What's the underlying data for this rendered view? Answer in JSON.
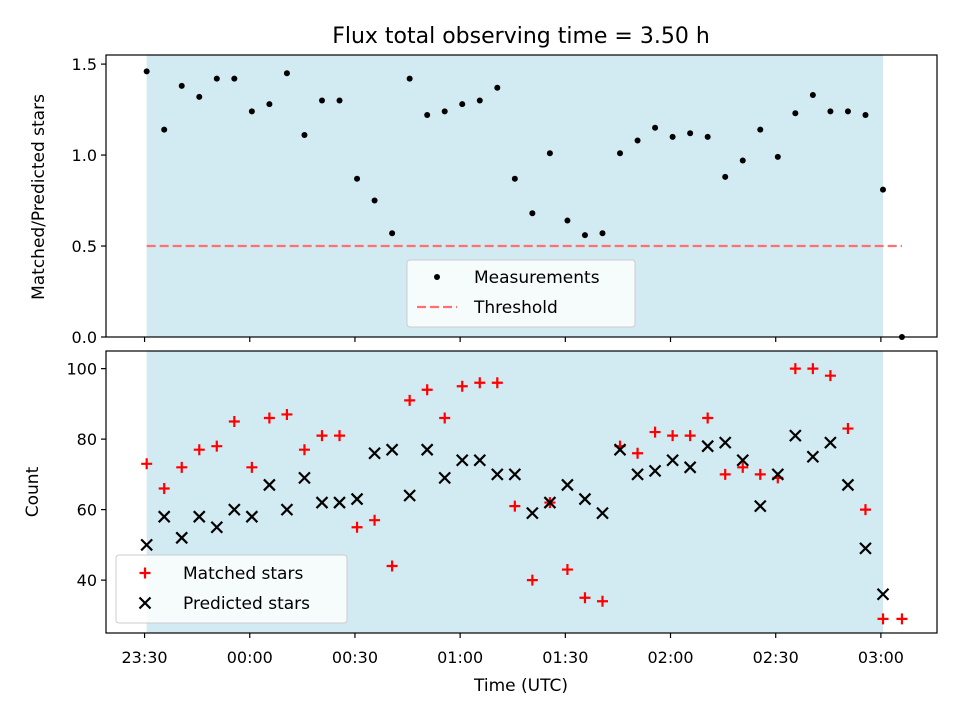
{
  "figure": {
    "title": "Flux total observing time = 3.50 h",
    "xlabel": "Time (UTC)",
    "x_ticks": [
      "23:30",
      "00:00",
      "00:30",
      "01:00",
      "01:30",
      "02:00",
      "02:30",
      "03:00"
    ],
    "x_tick_minutes": [
      0,
      30,
      60,
      90,
      120,
      150,
      180,
      210
    ],
    "x_range_minutes": [
      -11,
      226
    ],
    "shaded_span_minutes": [
      0.6,
      210.6
    ],
    "colors": {
      "shade": "#add8e6",
      "measurement": "#000000",
      "threshold": "#ff7070",
      "matched": "#ff0000",
      "predicted": "#000000"
    }
  },
  "chart_data": [
    {
      "type": "scatter",
      "ylabel": "Matched/Predicted stars",
      "ylim": [
        0,
        1.55
      ],
      "y_ticks": [
        "0.0",
        "0.5",
        "1.0",
        "1.5"
      ],
      "y_tick_values": [
        0,
        0.5,
        1.0,
        1.5
      ],
      "legend": [
        "Measurements",
        "Threshold"
      ],
      "legend_position": "lower center",
      "threshold": 0.5,
      "threshold_span_minutes": [
        0.6,
        216
      ],
      "series": [
        {
          "name": "Measurements",
          "x": [
            0.6,
            5.6,
            10.6,
            15.6,
            20.6,
            25.6,
            30.6,
            35.6,
            40.6,
            45.6,
            50.6,
            55.6,
            60.6,
            65.6,
            70.6,
            75.6,
            80.6,
            85.6,
            90.6,
            95.6,
            100.6,
            105.6,
            110.6,
            115.6,
            120.6,
            125.6,
            130.6,
            135.6,
            140.6,
            145.6,
            150.6,
            155.6,
            160.6,
            165.6,
            170.6,
            175.6,
            180.6,
            185.6,
            190.6,
            195.6,
            200.6,
            205.6,
            210.6,
            216.0
          ],
          "y": [
            1.46,
            1.14,
            1.38,
            1.32,
            1.42,
            1.42,
            1.24,
            1.28,
            1.45,
            1.11,
            1.3,
            1.3,
            0.87,
            0.75,
            0.57,
            1.42,
            1.22,
            1.24,
            1.28,
            1.3,
            1.37,
            0.87,
            0.68,
            1.01,
            0.64,
            0.56,
            0.57,
            1.01,
            1.08,
            1.15,
            1.1,
            1.12,
            1.1,
            0.88,
            0.97,
            1.14,
            0.99,
            1.23,
            1.33,
            1.24,
            1.24,
            1.22,
            0.81,
            0.0
          ]
        }
      ]
    },
    {
      "type": "scatter",
      "ylabel": "Count",
      "ylim": [
        25,
        105
      ],
      "y_ticks": [
        "40",
        "60",
        "80",
        "100"
      ],
      "y_tick_values": [
        40,
        60,
        80,
        100
      ],
      "legend": [
        "Matched stars",
        "Predicted stars"
      ],
      "legend_position": "lower left",
      "series": [
        {
          "name": "Matched stars",
          "x": [
            0.6,
            5.6,
            10.6,
            15.6,
            20.6,
            25.6,
            30.6,
            35.6,
            40.6,
            45.6,
            50.6,
            55.6,
            60.6,
            65.6,
            70.6,
            75.6,
            80.6,
            85.6,
            90.6,
            95.6,
            100.6,
            105.6,
            110.6,
            115.6,
            120.6,
            125.6,
            130.6,
            135.6,
            140.6,
            145.6,
            150.6,
            155.6,
            160.6,
            165.6,
            170.6,
            175.6,
            180.6,
            185.6,
            190.6,
            195.6,
            200.6,
            205.6,
            210.6,
            216.0
          ],
          "y": [
            73,
            66,
            72,
            77,
            78,
            85,
            72,
            86,
            87,
            77,
            81,
            81,
            55,
            57,
            44,
            91,
            94,
            86,
            95,
            96,
            96,
            61,
            40,
            62,
            43,
            35,
            34,
            78,
            76,
            82,
            81,
            81,
            86,
            70,
            72,
            70,
            69,
            100,
            100,
            98,
            83,
            60,
            29,
            29
          ]
        },
        {
          "name": "Predicted stars",
          "x": [
            0.6,
            5.6,
            10.6,
            15.6,
            20.6,
            25.6,
            30.6,
            35.6,
            40.6,
            45.6,
            50.6,
            55.6,
            60.6,
            65.6,
            70.6,
            75.6,
            80.6,
            85.6,
            90.6,
            95.6,
            100.6,
            105.6,
            110.6,
            115.6,
            120.6,
            125.6,
            130.6,
            135.6,
            140.6,
            145.6,
            150.6,
            155.6,
            160.6,
            165.6,
            170.6,
            175.6,
            180.6,
            185.6,
            190.6,
            195.6,
            200.6,
            205.6,
            210.6
          ],
          "y": [
            50,
            58,
            52,
            58,
            55,
            60,
            58,
            67,
            60,
            69,
            62,
            62,
            63,
            76,
            77,
            64,
            77,
            69,
            74,
            74,
            70,
            70,
            59,
            62,
            67,
            63,
            59,
            77,
            70,
            71,
            74,
            72,
            78,
            79,
            74,
            61,
            70,
            81,
            75,
            79,
            67,
            49,
            36
          ]
        }
      ]
    }
  ]
}
